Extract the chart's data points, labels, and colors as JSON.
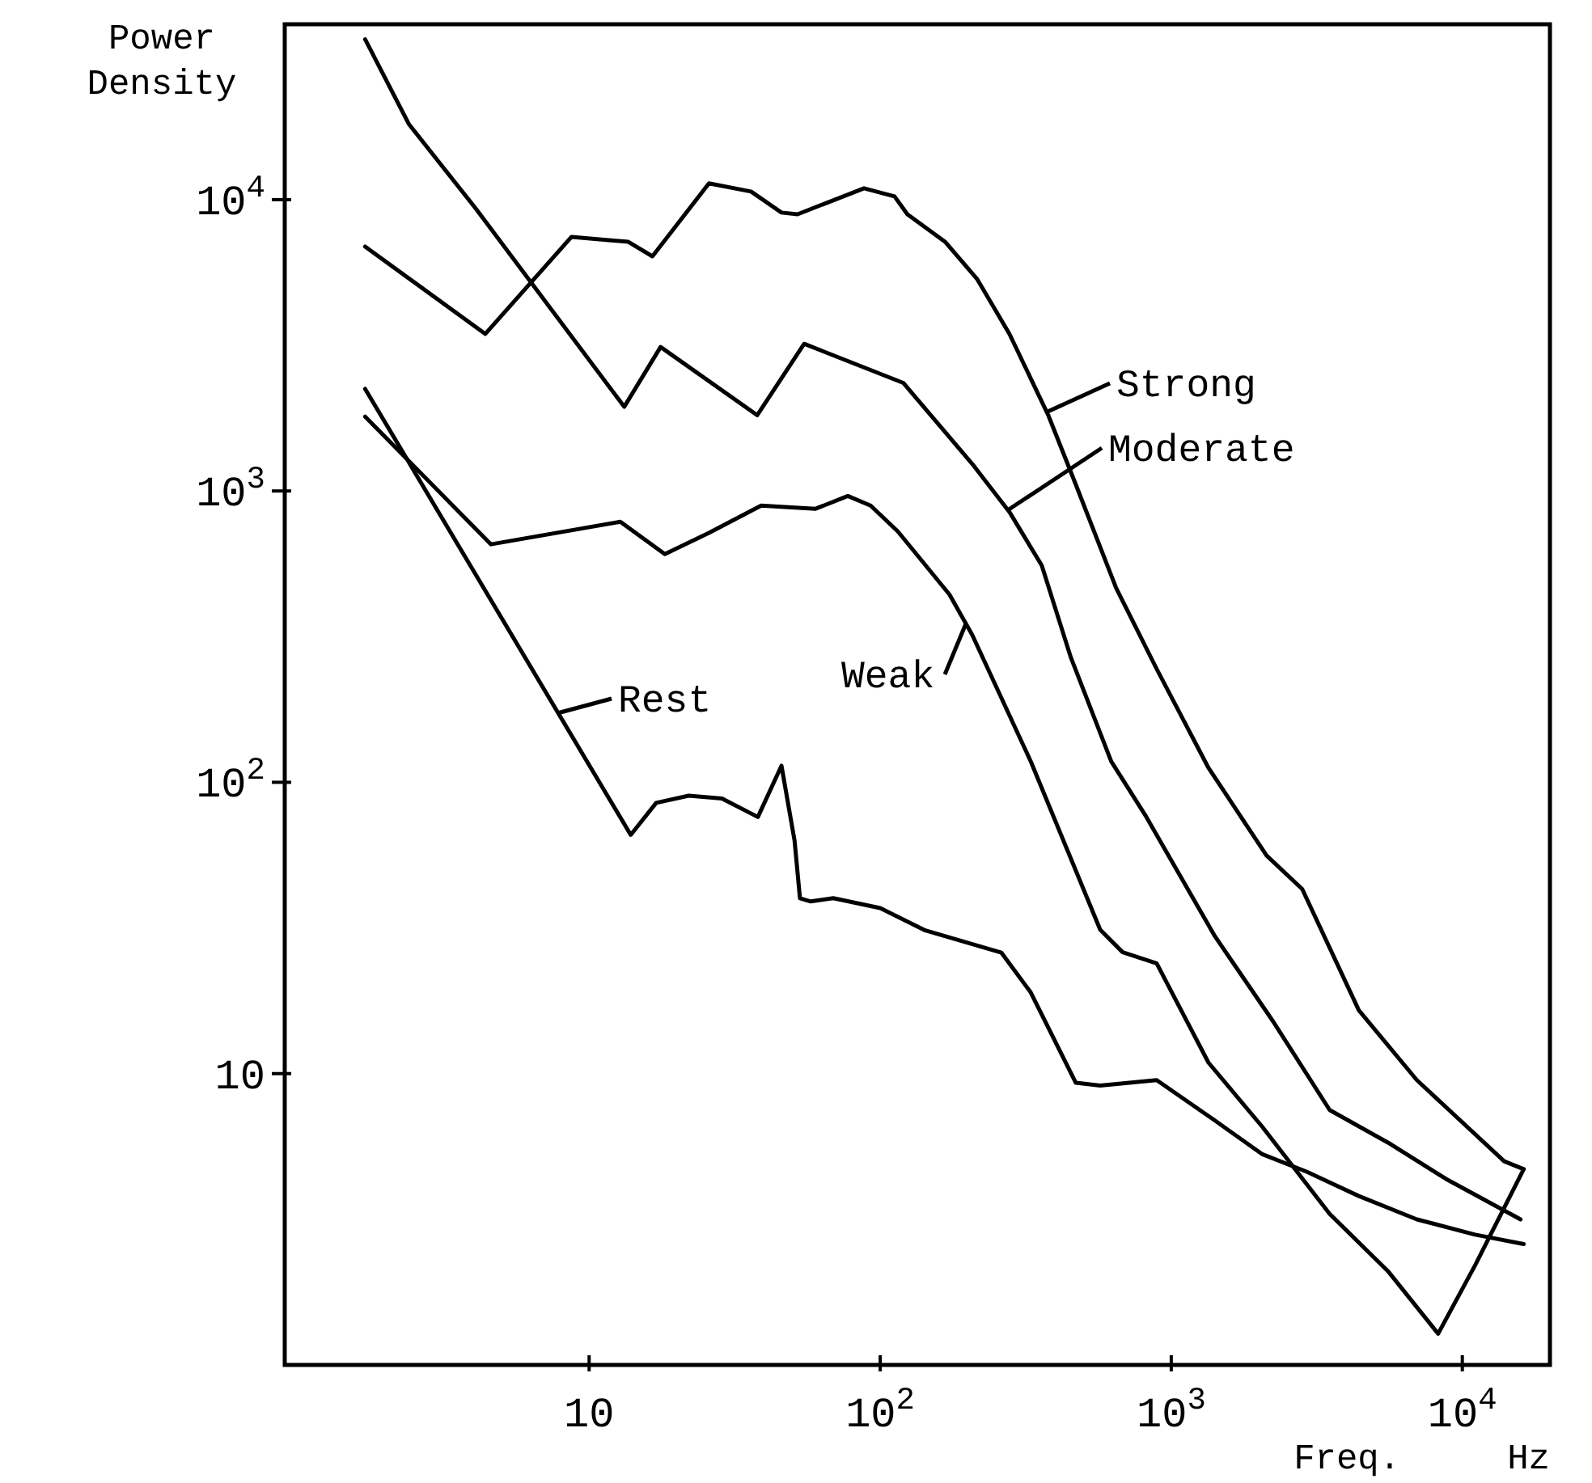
{
  "chart_data": {
    "type": "line",
    "xlabel": "Freq.     Hz",
    "ylabel": "Power Density",
    "log": "xy",
    "grid": false,
    "legend": "top",
    "marker": "none",
    "line_style": "solid",
    "xlim": [
      0.9,
      20000
    ],
    "ylim": [
      1,
      40000
    ],
    "xticks": [
      10,
      {
        "value": 100,
        "label": "10$^{2}$"
      },
      {
        "value": 1000,
        "label": "10$^{3}$"
      },
      {
        "value": 10000,
        "label": "10$^{4}$"
      }
    ],
    "yticks": [
      10,
      {
        "value": 100,
        "label": "10$^{2}$"
      },
      {
        "value": 1000,
        "label": "10$^{3}$"
      },
      {
        "value": 10000,
        "label": "10$^{4}$"
      }
    ],
    "series": [
      {
        "name": "Strong",
        "color": "#000000",
        "x": [
          1.7,
          4.4,
          8.7,
          13.6,
          16.5,
          25.8,
          36,
          45.8,
          52,
          88,
          112,
          124,
          167,
          215,
          278,
          378,
          470,
          647,
          891,
          1343,
          2127,
          2818,
          4410,
          6980,
          13930,
          16250
        ],
        "values": [
          6900,
          3460,
          7450,
          7170,
          6390,
          11370,
          10660,
          9030,
          8910,
          10940,
          10260,
          8910,
          7170,
          5350,
          3460,
          1820,
          1052,
          464,
          245,
          112,
          56,
          43,
          16.5,
          9.5,
          5.0,
          4.7
        ]
      },
      {
        "name": "Moderate",
        "color": "#000000",
        "x": [
          1.7,
          2.4,
          4.1,
          13.2,
          17.6,
          37.8,
          54.8,
          120,
          207,
          278,
          359,
          452,
          622,
          815,
          1413,
          2239,
          3502,
          5550,
          8790,
          15850
        ],
        "values": [
          35500,
          18200,
          9260,
          1945,
          3120,
          1820,
          3200,
          2350,
          1240,
          847,
          555,
          268,
          118,
          77,
          29.6,
          15.1,
          7.5,
          5.8,
          4.35,
          3.16
        ]
      },
      {
        "name": "Weak",
        "color": "#000000",
        "x": [
          1.7,
          4.6,
          12.8,
          18.2,
          25.8,
          39,
          60,
          77.4,
          92.7,
          115,
          173,
          207,
          329,
          570,
          681,
          891,
          1343,
          2047,
          3502,
          5550,
          8260,
          11070,
          16250
        ],
        "values": [
          1800,
          656,
          784,
          607,
          718,
          891,
          869,
          961,
          891,
          726,
          441,
          321,
          118,
          31.2,
          26.1,
          23.9,
          10.9,
          6.6,
          3.3,
          2.1,
          1.28,
          2.2,
          4.7
        ]
      },
      {
        "name": "Rest",
        "color": "#000000",
        "x": [
          1.7,
          13.9,
          17,
          22,
          28.6,
          38,
          45.8,
          50.8,
          53,
          57.7,
          69,
          100,
          143,
          261,
          329,
          470,
          570,
          891,
          1413,
          2047,
          2928,
          4410,
          6980,
          11070,
          16250
        ],
        "values": [
          2240,
          66,
          85,
          90,
          88,
          76,
          114,
          63,
          40,
          39,
          40,
          37,
          31,
          26,
          19,
          9.3,
          9.1,
          9.5,
          6.9,
          5.3,
          4.6,
          3.8,
          3.16,
          2.8,
          2.6
        ]
      }
    ]
  }
}
